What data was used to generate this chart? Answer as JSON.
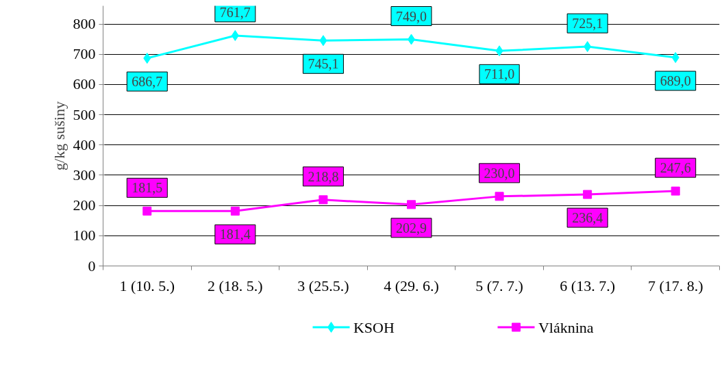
{
  "chart_data": {
    "type": "line",
    "ylabel": "g/kg sušiny",
    "categories": [
      "1 (10. 5.)",
      "2 (18. 5.)",
      "3 (25.5.)",
      "4 (29. 6.)",
      "5 (7. 7.)",
      "6 (13. 7.)",
      "7 (17. 8.)"
    ],
    "series": [
      {
        "name": "KSOH",
        "color": "#00ffff",
        "marker": "diamond",
        "values": [
          686.7,
          761.7,
          745.1,
          749.0,
          711.0,
          725.1,
          689.0
        ],
        "value_labels": [
          "686,7",
          "761,7",
          "745,1",
          "749,0",
          "711,0",
          "725,1",
          "689,0"
        ]
      },
      {
        "name": "Vláknina",
        "color": "#ff00ff",
        "marker": "square",
        "values": [
          181.5,
          181.4,
          218.8,
          202.9,
          230.0,
          236.4,
          247.6
        ],
        "value_labels": [
          "181,5",
          "181,4",
          "218,8",
          "202,9",
          "230,0",
          "236,4",
          "247,6"
        ]
      }
    ],
    "ylim": [
      0,
      860
    ],
    "yticks": [
      0,
      100,
      200,
      300,
      400,
      500,
      600,
      700,
      800
    ],
    "grid": "y",
    "legend": "bottom",
    "line_style": "solid"
  }
}
